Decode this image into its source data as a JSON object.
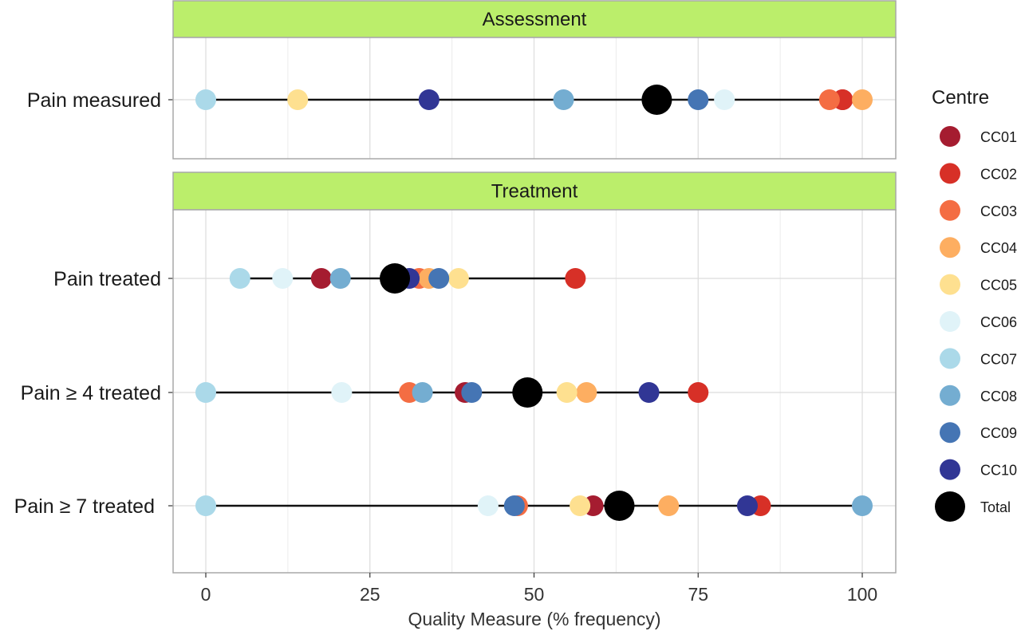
{
  "chart_data": {
    "type": "scatter",
    "xlabel": "Quality Measure (% frequency)",
    "xlim": [
      -5,
      105
    ],
    "xticks": [
      0,
      25,
      50,
      75,
      100
    ],
    "grid": true,
    "legend": {
      "title": "Centre",
      "placement": "right"
    },
    "series": [
      {
        "name": "CC01",
        "color": "#a51c30"
      },
      {
        "name": "CC02",
        "color": "#d73027"
      },
      {
        "name": "CC03",
        "color": "#f46d43"
      },
      {
        "name": "CC04",
        "color": "#fdae61"
      },
      {
        "name": "CC05",
        "color": "#fee090"
      },
      {
        "name": "CC06",
        "color": "#e0f3f8"
      },
      {
        "name": "CC07",
        "color": "#abd9e9"
      },
      {
        "name": "CC08",
        "color": "#74add1"
      },
      {
        "name": "CC09",
        "color": "#4575b4"
      },
      {
        "name": "CC10",
        "color": "#313695"
      },
      {
        "name": "Total",
        "color": "#000000"
      }
    ],
    "panels": [
      {
        "title": "Assessment",
        "rows": [
          {
            "label": "Pain measured",
            "values": {
              "CC01": 97,
              "CC02": 97,
              "CC03": 95,
              "CC04": 100,
              "CC05": 14,
              "CC06": 79,
              "CC07": 0,
              "CC08": 54.5,
              "CC09": 75,
              "CC10": 34,
              "Total": 68.7
            }
          }
        ]
      },
      {
        "title": "Treatment",
        "rows": [
          {
            "label": "Pain treated",
            "values": {
              "CC01": 17.6,
              "CC02": 56.3,
              "CC03": 32.5,
              "CC04": 34,
              "CC05": 38.5,
              "CC06": 11.7,
              "CC07": 5.2,
              "CC08": 20.5,
              "CC09": 35.5,
              "CC10": 31,
              "Total": 28.8
            }
          },
          {
            "label": "Pain ≥ 4 treated",
            "values": {
              "CC01": 39.5,
              "CC02": 75,
              "CC03": 31,
              "CC04": 58,
              "CC05": 55,
              "CC06": 20.7,
              "CC07": 0,
              "CC08": 33,
              "CC09": 40.5,
              "CC10": 67.5,
              "Total": 49
            }
          },
          {
            "label": "Pain ≥ 7 treated",
            "values": {
              "CC01": 59,
              "CC02": 84.5,
              "CC03": 47.5,
              "CC04": 70.5,
              "CC05": 57,
              "CC06": 43,
              "CC07": 0,
              "CC08": 100,
              "CC09": 47,
              "CC10": 82.5,
              "Total": 63
            }
          }
        ]
      }
    ]
  }
}
